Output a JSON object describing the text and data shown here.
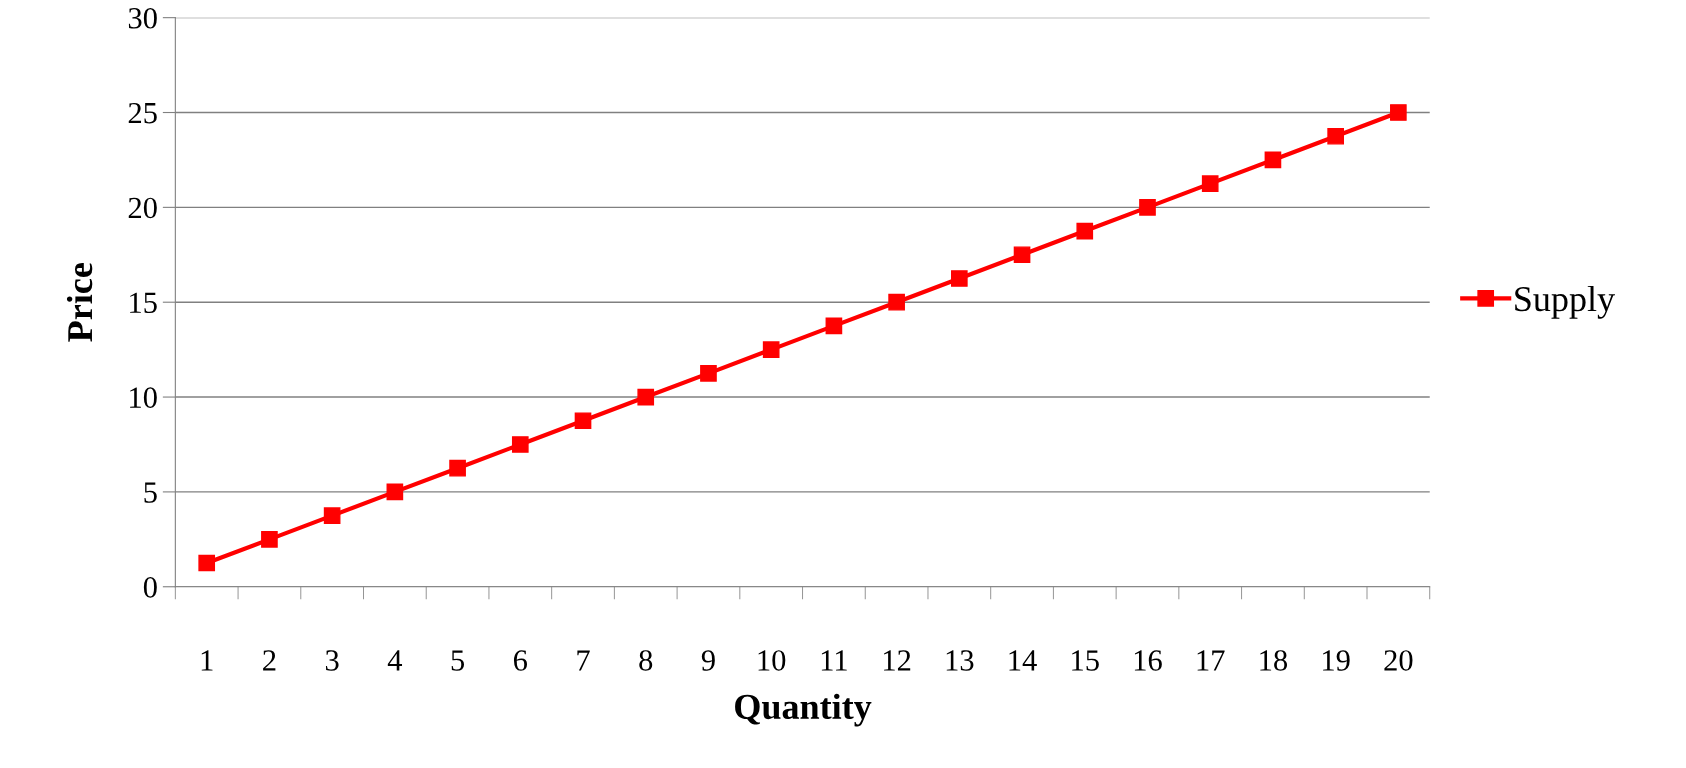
{
  "chart_data": {
    "type": "line",
    "xlabel": "Quantity",
    "ylabel": "Price",
    "categories": [
      "1",
      "2",
      "3",
      "4",
      "5",
      "6",
      "7",
      "8",
      "9",
      "10",
      "11",
      "12",
      "13",
      "14",
      "15",
      "16",
      "17",
      "18",
      "19",
      "20"
    ],
    "series": [
      {
        "name": "Supply",
        "color": "#ff0000",
        "values": [
          1.25,
          2.5,
          3.75,
          5,
          6.25,
          7.5,
          8.75,
          10,
          11.25,
          12.5,
          13.75,
          15,
          16.25,
          17.5,
          18.75,
          20,
          21.25,
          22.5,
          23.75,
          25
        ]
      }
    ],
    "ylim": [
      0,
      30
    ],
    "yticks": [
      0,
      5,
      10,
      15,
      20,
      25,
      30
    ],
    "grid": "y",
    "legend": "right",
    "marker": "square",
    "line_style": "solid"
  }
}
